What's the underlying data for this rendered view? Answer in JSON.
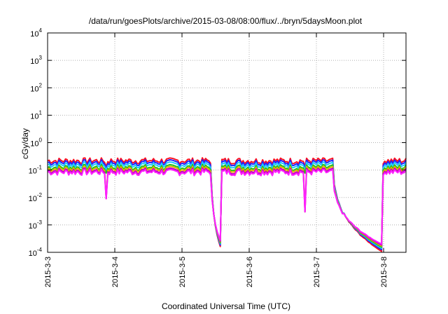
{
  "chart_data": {
    "type": "line",
    "title": "/data/run/goesPlots/archive/2015-03-08/08:00/flux/../bryn/5daysMoon.plot",
    "xlabel": "Coordinated Universal Time (UTC)",
    "ylabel": "cGy/day",
    "yscale": "log",
    "ylim": [
      0.0001,
      10000
    ],
    "y_ticks": [
      {
        "base": "10",
        "exp": "-4",
        "value": 0.0001
      },
      {
        "base": "10",
        "exp": "-3",
        "value": 0.001
      },
      {
        "base": "10",
        "exp": "-2",
        "value": 0.01
      },
      {
        "base": "10",
        "exp": "-1",
        "value": 0.1
      },
      {
        "base": "10",
        "exp": "0",
        "value": 1
      },
      {
        "base": "10",
        "exp": "1",
        "value": 10
      },
      {
        "base": "10",
        "exp": "2",
        "value": 100
      },
      {
        "base": "10",
        "exp": "3",
        "value": 1000
      },
      {
        "base": "10",
        "exp": "4",
        "value": 10000
      }
    ],
    "xlim": [
      "2015-03-03T00:00",
      "2015-03-08T08:00"
    ],
    "x_ticks": [
      "2015-3-3",
      "2015-3-4",
      "2015-3-5",
      "2015-3-6",
      "2015-3-7",
      "2015-3-8"
    ],
    "x_tick_dates": [
      "2015-03-03T00:00",
      "2015-03-04T00:00",
      "2015-03-05T00:00",
      "2015-03-06T00:00",
      "2015-03-07T00:00",
      "2015-03-08T00:00"
    ],
    "grid": true,
    "series": [
      {
        "color": "#ff1020",
        "level": 0.21
      },
      {
        "color": "#2222ff",
        "level": 0.18
      },
      {
        "color": "#22c8ff",
        "level": 0.15
      },
      {
        "color": "#20c020",
        "level": 0.12
      },
      {
        "color": "#e0b000",
        "level": 0.105
      },
      {
        "color": "#c000c0",
        "level": 0.09
      },
      {
        "color": "#ff20ff",
        "level": 0.08
      }
    ],
    "dips": [
      {
        "start": "2015-03-05T10:30",
        "end": "2015-03-05T14:15",
        "min": 0.0001
      },
      {
        "start": "2015-03-07T06:00",
        "end": "2015-03-07T23:30",
        "min": 0.0001
      }
    ],
    "spikes": [
      {
        "time": "2015-03-03T21:00",
        "min": 0.009
      },
      {
        "time": "2015-03-06T19:45",
        "min": 0.003
      }
    ]
  }
}
